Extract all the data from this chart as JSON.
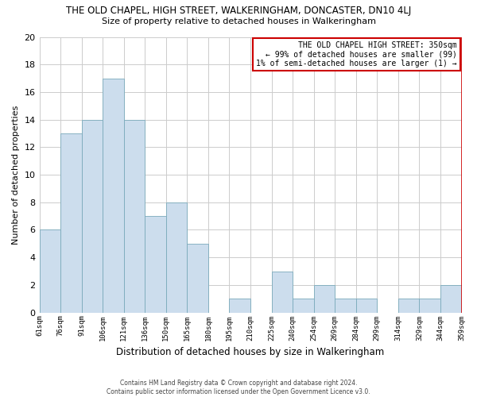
{
  "title": "THE OLD CHAPEL, HIGH STREET, WALKERINGHAM, DONCASTER, DN10 4LJ",
  "subtitle": "Size of property relative to detached houses in Walkeringham",
  "xlabel": "Distribution of detached houses by size in Walkeringham",
  "ylabel": "Number of detached properties",
  "footer_line1": "Contains HM Land Registry data © Crown copyright and database right 2024.",
  "footer_line2": "Contains public sector information licensed under the Open Government Licence v3.0.",
  "bar_labels": [
    "61sqm",
    "76sqm",
    "91sqm",
    "106sqm",
    "121sqm",
    "136sqm",
    "150sqm",
    "165sqm",
    "180sqm",
    "195sqm",
    "210sqm",
    "225sqm",
    "240sqm",
    "254sqm",
    "269sqm",
    "284sqm",
    "299sqm",
    "314sqm",
    "329sqm",
    "344sqm",
    "359sqm"
  ],
  "bar_values": [
    6,
    13,
    14,
    17,
    14,
    7,
    8,
    5,
    0,
    1,
    0,
    3,
    1,
    2,
    1,
    1,
    0,
    1,
    1,
    2
  ],
  "bar_color": "#ccdded",
  "bar_edge_color": "#7aaabb",
  "ylim": [
    0,
    20
  ],
  "yticks": [
    0,
    2,
    4,
    6,
    8,
    10,
    12,
    14,
    16,
    18,
    20
  ],
  "annotation_title": "THE OLD CHAPEL HIGH STREET: 350sqm",
  "annotation_line2": "← 99% of detached houses are smaller (99)",
  "annotation_line3": "1% of semi-detached houses are larger (1) →",
  "annotation_box_color": "#ffffff",
  "annotation_border_color": "#cc0000",
  "background_color": "#ffffff",
  "grid_color": "#cccccc"
}
